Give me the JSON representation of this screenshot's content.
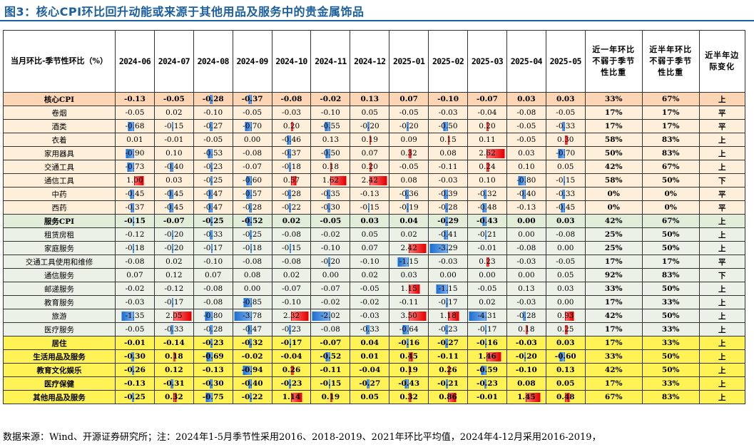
{
  "title": "图3：核心CPI环比回升动能或来源于其他用品及服务中的贵金属饰品",
  "header": {
    "row_label": "当月环比-季节性环比（%）",
    "months": [
      "2024-06",
      "2024-07",
      "2024-08",
      "2024-09",
      "2024-10",
      "2024-11",
      "2024-12",
      "2025-01",
      "2025-02",
      "2025-03",
      "2025-04",
      "2025-05"
    ],
    "stat1": "近一年环比不弱于季节性比重",
    "stat2": "近半年环比不弱于季节性比重",
    "stat3": "近半年边际变化"
  },
  "rows": [
    {
      "label": "核心CPI",
      "style": "s1",
      "kind": "main",
      "values": [
        "-0.13",
        "-0.05",
        "-0.28",
        "-0.37",
        "-0.08",
        "-0.02",
        "0.13",
        "0.07",
        "-0.10",
        "-0.07",
        "0.03",
        "0.03"
      ],
      "s1": "33%",
      "s2": "67%",
      "s3": "上"
    },
    {
      "label": "卷烟",
      "style": "s2",
      "kind": "sub",
      "values": [
        "-0.05",
        "0.02",
        "-0.10",
        "-0.05",
        "-0.03",
        "-0.10",
        "0.05",
        "-0.05",
        "-0.03",
        "-0.04",
        "-0.08",
        "-0.05"
      ],
      "s1": "17%",
      "s2": "17%",
      "s3": "平"
    },
    {
      "label": "酒类",
      "style": "s2",
      "kind": "sub",
      "values": [
        "-0.68",
        "-0.15",
        "-0.27",
        "-0.70",
        "0.20",
        "-0.55",
        "-0.20",
        "-0.20",
        "-0.50",
        "0.20",
        "-0.05",
        "-0.33"
      ],
      "s1": "17%",
      "s2": "17%",
      "s3": "平"
    },
    {
      "label": "衣着",
      "style": "s2",
      "kind": "sub",
      "values": [
        "0.01",
        "-0.01",
        "-0.05",
        "0.00",
        "-0.46",
        "0.13",
        "0.19",
        "0.09",
        "0.15",
        "0.11",
        "-0.05",
        "0.30"
      ],
      "s1": "58%",
      "s2": "83%",
      "s3": "上"
    },
    {
      "label": "家用器具",
      "style": "s2",
      "kind": "sub",
      "values": [
        "-0.90",
        "0.10",
        "-0.53",
        "-0.08",
        "-0.37",
        "-0.50",
        "0.07",
        "0.32",
        "0.08",
        "2.62",
        "0.03",
        "-0.70"
      ],
      "s1": "50%",
      "s2": "83%",
      "s3": "上"
    },
    {
      "label": "交通工具",
      "style": "s2",
      "kind": "sub",
      "values": [
        "-0.73",
        "-0.40",
        "-0.23",
        "-0.07",
        "-0.18",
        "0.18",
        "0.20",
        "-0.05",
        "-0.11",
        "0.24",
        "0.10",
        "0.05"
      ],
      "s1": "42%",
      "s2": "67%",
      "s3": "上"
    },
    {
      "label": "通信工具",
      "style": "s2",
      "kind": "sub",
      "values": [
        "1.00",
        "0.03",
        "-0.25",
        "-0.60",
        "0.57",
        "1.62",
        "2.42",
        "0.08",
        "-0.03",
        "0.10",
        "-0.80",
        "-0.15"
      ],
      "s1": "58%",
      "s2": "50%",
      "s3": "下"
    },
    {
      "label": "中药",
      "style": "s2",
      "kind": "sub",
      "values": [
        "-0.45",
        "-0.45",
        "-0.47",
        "-0.57",
        "-0.28",
        "-0.35",
        "-0.13",
        "-0.36",
        "-0.39",
        "-0.32",
        "-0.40",
        "-0.33"
      ],
      "s1": "0%",
      "s2": "0%",
      "s3": "平"
    },
    {
      "label": "西药",
      "style": "s2",
      "kind": "sub",
      "values": [
        "-0.37",
        "-0.45",
        "-0.47",
        "-0.28",
        "-0.22",
        "-0.30",
        "-0.15",
        "-0.19",
        "-0.28",
        "-0.48",
        "-0.13",
        "-0.45"
      ],
      "s1": "0%",
      "s2": "0%",
      "s3": "平"
    },
    {
      "label": "服务CPI",
      "style": "s3",
      "kind": "main",
      "values": [
        "-0.15",
        "-0.07",
        "-0.25",
        "-0.52",
        "0.02",
        "-0.05",
        "0.03",
        "0.04",
        "-0.29",
        "-0.43",
        "0.00",
        "0.03"
      ],
      "s1": "42%",
      "s2": "67%",
      "s3": "上"
    },
    {
      "label": "租赁房租",
      "style": "s4",
      "kind": "sub",
      "values": [
        "-0.12",
        "-0.20",
        "-0.33",
        "-0.25",
        "-0.08",
        "-0.02",
        "0.05",
        "0.02",
        "-0.41",
        "-0.21",
        "0.00",
        "-0.08"
      ],
      "s1": "25%",
      "s2": "50%",
      "s3": "上"
    },
    {
      "label": "家庭服务",
      "style": "s4",
      "kind": "sub",
      "values": [
        "-0.18",
        "-0.20",
        "-0.17",
        "-0.18",
        "-0.15",
        "-0.10",
        "0.07",
        "2.42",
        "-3.29",
        "-0.01",
        "-0.08",
        "0.00"
      ],
      "s1": "25%",
      "s2": "50%",
      "s3": "上"
    },
    {
      "label": "交通工具使用和维修",
      "style": "s4",
      "kind": "sub",
      "values": [
        "-0.08",
        "0.02",
        "-0.10",
        "-0.08",
        "-0.08",
        "-0.20",
        "-0.10",
        "-1.15",
        "-0.03",
        "0.23",
        "-0.03",
        "-0.05"
      ],
      "s1": "17%",
      "s2": "17%",
      "s3": "平"
    },
    {
      "label": "通信服务",
      "style": "s4",
      "kind": "sub",
      "values": [
        "0.07",
        "0.12",
        "0.07",
        "0.08",
        "0.02",
        "0.00",
        "0.02",
        "0.03",
        "0.00",
        "0.00",
        "0.00",
        "0.05"
      ],
      "s1": "92%",
      "s2": "83%",
      "s3": "下"
    },
    {
      "label": "邮递服务",
      "style": "s4",
      "kind": "sub",
      "values": [
        "-0.02",
        "-0.12",
        "-0.08",
        "0.00",
        "-0.07",
        "-0.07",
        "-0.05",
        "1.15",
        "-1.15",
        "-0.05",
        "0.13",
        "0.03"
      ],
      "s1": "33%",
      "s2": "50%",
      "s3": "上"
    },
    {
      "label": "教育服务",
      "style": "s4",
      "kind": "sub",
      "values": [
        "-0.03",
        "-0.17",
        "-0.08",
        "-0.85",
        "-0.10",
        "-0.02",
        "-0.02",
        "-0.11",
        "-0.17",
        "0.02",
        "-0.03",
        "0.00"
      ],
      "s1": "17%",
      "s2": "33%",
      "s3": "上"
    },
    {
      "label": "旅游",
      "style": "s4",
      "kind": "sub",
      "values": [
        "-1.35",
        "2.05",
        "-0.80",
        "-3.78",
        "2.32",
        "-2.02",
        "-0.03",
        "3.50",
        "1.18",
        "-4.31",
        "-0.28",
        "0.93"
      ],
      "s1": "42%",
      "s2": "50%",
      "s3": "上"
    },
    {
      "label": "医疗服务",
      "style": "s4",
      "kind": "sub",
      "values": [
        "-0.05",
        "-0.33",
        "-0.28",
        "-0.47",
        "-0.23",
        "-0.08",
        "-0.33",
        "-0.64",
        "-0.23",
        "-0.17",
        "0.18",
        "0.25"
      ],
      "s1": "17%",
      "s2": "33%",
      "s3": "上"
    },
    {
      "label": "居住",
      "style": "s5",
      "kind": "main",
      "values": [
        "-0.01",
        "-0.14",
        "-0.23",
        "-0.32",
        "-0.17",
        "-0.07",
        "0.04",
        "-0.16",
        "-0.27",
        "-0.16",
        "-0.03",
        "0.03"
      ],
      "s1": "17%",
      "s2": "33%",
      "s3": "上"
    },
    {
      "label": "生活用品及服务",
      "style": "s5",
      "kind": "main",
      "values": [
        "-0.30",
        "0.18",
        "-0.69",
        "-0.02",
        "-0.04",
        "-0.52",
        "0.01",
        "0.45",
        "-0.11",
        "1.46",
        "-0.20",
        "-0.60"
      ],
      "s1": "33%",
      "s2": "50%",
      "s3": "上"
    },
    {
      "label": "教育文化娱乐",
      "style": "s5",
      "kind": "main",
      "values": [
        "-0.26",
        "0.12",
        "-0.13",
        "-0.94",
        "0.26",
        "-0.11",
        "-0.04",
        "0.19",
        "0.26",
        "-0.59",
        "-0.10",
        "0.13"
      ],
      "s1": "42%",
      "s2": "50%",
      "s3": "上"
    },
    {
      "label": "医疗保健",
      "style": "s5",
      "kind": "main",
      "values": [
        "-0.13",
        "-0.31",
        "-0.30",
        "-0.40",
        "-0.23",
        "-0.15",
        "-0.27",
        "-0.43",
        "-0.21",
        "-0.23",
        "0.08",
        "0.05"
      ],
      "s1": "17%",
      "s2": "33%",
      "s3": "上"
    },
    {
      "label": "其他用品及服务",
      "style": "s5",
      "kind": "main",
      "values": [
        "-0.25",
        "0.32",
        "-0.75",
        "-0.22",
        "1.14",
        "0.19",
        "0.05",
        "0.32",
        "0.86",
        "-0.01",
        "1.45",
        "0.48"
      ],
      "s1": "67%",
      "s2": "83%",
      "s3": "上"
    }
  ],
  "colors": {
    "positive_bar": "#e30000",
    "negative_bar": "#1e6fd0",
    "title": "#1a5fa0",
    "core": "#fcd5b4",
    "goods": "#fdefd9",
    "service": "#e1ecd9",
    "service_sub": "#ecf1e8",
    "category": "#fff255"
  },
  "footer": "数据来源：Wind、开源证券研究所；注：2024年1-5月季节性采用2016、2018-2019、2021年环比平均值，2024年4-12月采用2016-2019，"
}
